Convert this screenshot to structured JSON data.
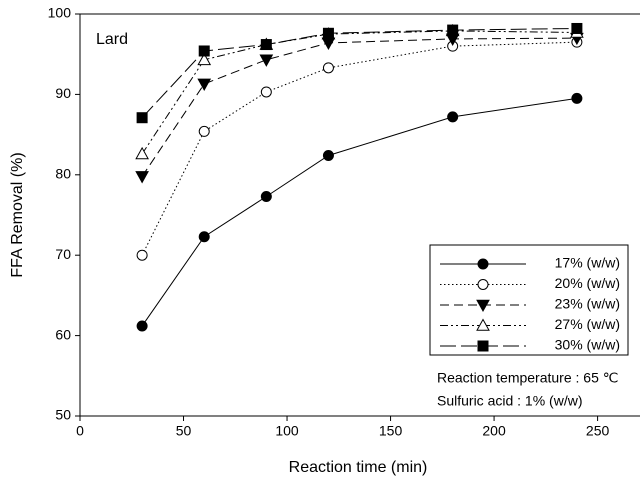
{
  "chart_data": {
    "type": "line",
    "x_label": "Reaction time (min)",
    "y_label": "FFA Removal (%)",
    "xlim": [
      0,
      270
    ],
    "xticks": [
      0,
      50,
      100,
      150,
      200,
      250
    ],
    "ylim": [
      50,
      100
    ],
    "yticks": [
      50,
      60,
      70,
      80,
      90,
      100
    ],
    "legend": "lower right",
    "annotations": [
      "Lard",
      "Reaction temperature : 65 ℃",
      "Sulfuric acid : 1% (w/w)"
    ],
    "x": [
      30,
      60,
      90,
      120,
      180,
      240
    ],
    "series": [
      {
        "name": "17% (w/w)",
        "color": "#000000",
        "marker": "circle-filled",
        "dash": "solid",
        "values": [
          61.2,
          72.3,
          77.3,
          82.4,
          87.2,
          89.5
        ]
      },
      {
        "name": "20% (w/w)",
        "color": "#000000",
        "marker": "circle-open",
        "dash": "dotted",
        "values": [
          70.0,
          85.4,
          90.3,
          93.3,
          96.0,
          96.5
        ]
      },
      {
        "name": "23% (w/w)",
        "color": "#000000",
        "marker": "triangle-down-filled",
        "dash": "dashed",
        "values": [
          79.8,
          91.3,
          94.3,
          96.4,
          96.9,
          97.0
        ]
      },
      {
        "name": "27% (w/w)",
        "color": "#000000",
        "marker": "triangle-up-open",
        "dash": "dashdotdot",
        "values": [
          82.6,
          94.3,
          96.2,
          97.5,
          97.9,
          97.7
        ]
      },
      {
        "name": "30% (w/w)",
        "color": "#000000",
        "marker": "square-filled",
        "dash": "longdash",
        "values": [
          87.1,
          95.4,
          96.2,
          97.6,
          98.0,
          98.2
        ]
      }
    ]
  }
}
